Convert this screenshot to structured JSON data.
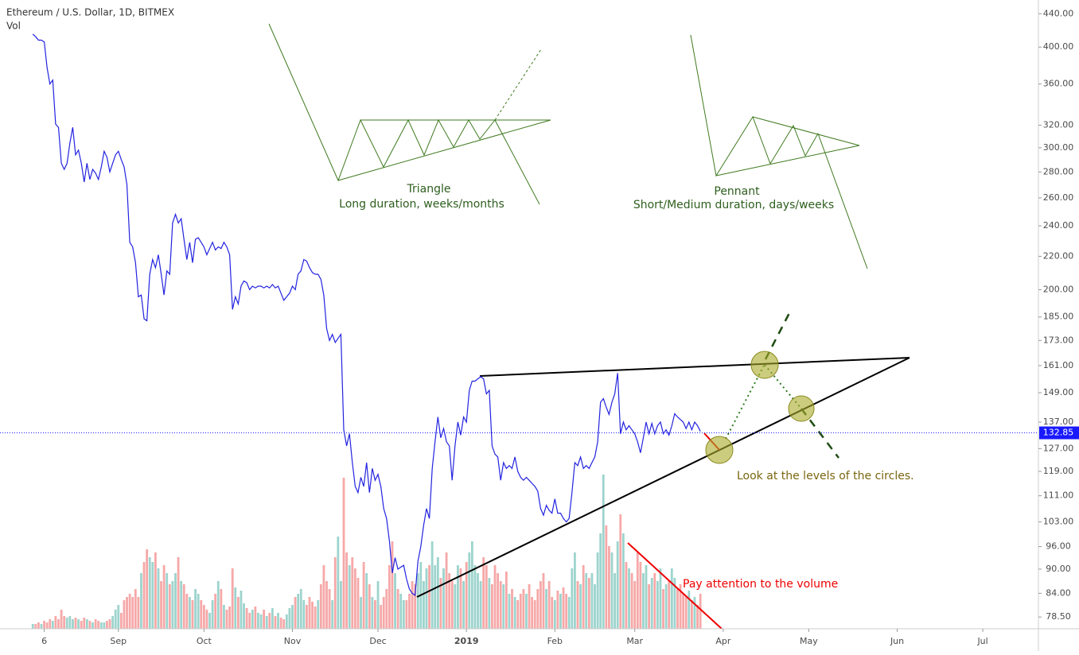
{
  "chart_data": {
    "type": "line",
    "title": "Ethereum / U.S. Dollar, 1D, BITMEX",
    "subtitle": "Vol",
    "log_scale": true,
    "grid": false,
    "color": "#2323e0",
    "x": [
      1,
      2,
      3,
      4,
      5,
      6,
      7,
      8,
      9,
      10,
      11,
      12,
      13,
      14,
      15,
      16,
      17,
      18,
      19,
      20,
      21,
      22,
      23,
      24,
      25,
      26,
      27,
      28,
      29,
      30,
      31,
      32,
      33,
      34,
      35,
      36,
      37,
      38,
      39,
      40,
      41,
      42,
      43,
      44,
      45,
      46,
      47,
      48,
      49,
      50,
      51,
      52,
      53,
      54,
      55,
      56,
      57,
      58,
      59,
      60,
      61,
      62,
      63,
      64,
      65,
      66,
      67,
      68,
      69,
      70,
      71,
      72,
      73,
      74,
      75,
      76,
      77,
      78,
      79,
      80,
      81,
      82,
      83,
      84,
      85,
      86,
      87,
      88,
      89,
      90,
      91,
      92,
      93,
      94,
      95,
      96,
      97,
      98,
      99,
      100,
      101,
      102,
      103,
      104,
      105,
      106,
      107,
      108,
      109,
      110,
      111,
      112,
      113,
      114,
      115,
      116,
      117,
      118,
      119,
      120,
      121,
      122,
      123,
      124,
      125,
      126,
      127,
      128,
      129,
      130,
      131,
      132,
      133,
      134,
      135,
      136,
      137,
      138,
      139,
      140,
      141,
      142,
      143,
      144,
      145,
      146,
      147,
      148,
      149,
      150,
      151,
      152,
      153,
      154,
      155,
      156,
      157,
      158,
      159,
      160,
      161,
      162,
      163,
      164,
      165,
      166,
      167,
      168,
      169,
      170,
      171,
      172,
      173,
      174,
      175,
      176,
      177,
      178,
      179,
      180,
      181,
      182,
      183,
      184,
      185,
      186,
      187,
      188,
      189,
      190,
      191,
      192,
      193,
      194,
      195,
      196,
      197,
      198,
      199,
      200,
      201,
      202,
      203,
      204,
      205,
      206,
      207,
      208,
      209,
      210,
      211,
      212,
      213,
      214,
      215,
      216,
      217,
      218,
      219,
      220,
      221,
      222,
      223,
      224,
      225,
      226,
      227,
      228,
      229,
      230,
      231,
      232,
      233,
      234,
      235
    ],
    "values": [
      415,
      412,
      408,
      408,
      406,
      377,
      360,
      364,
      321,
      318,
      287,
      282,
      287,
      304,
      318,
      294,
      298,
      287,
      272,
      287,
      274,
      282,
      279,
      274,
      284,
      297,
      292,
      280,
      287,
      294,
      297,
      290,
      284,
      270,
      229,
      226,
      216,
      196,
      197,
      184,
      183,
      209,
      218,
      213,
      221,
      209,
      197,
      211,
      209,
      242,
      248,
      242,
      245,
      231,
      218,
      229,
      216,
      231,
      232,
      229,
      226,
      221,
      225,
      229,
      224,
      226,
      225,
      229,
      226,
      221,
      189,
      196,
      192,
      202,
      205,
      204,
      200,
      202,
      201,
      202,
      202,
      201,
      202,
      201,
      203,
      201,
      202,
      198,
      194,
      196,
      198,
      202,
      200,
      209,
      211,
      218,
      217,
      213,
      210,
      209,
      209,
      206,
      197,
      179,
      173,
      176,
      172,
      174,
      176,
      134,
      128,
      132.5,
      122,
      114,
      112,
      117,
      114,
      122,
      112,
      120,
      116,
      118,
      114,
      107,
      104,
      97.5,
      89,
      93,
      90,
      90.5,
      91,
      87.5,
      85,
      84,
      83.5,
      92,
      96,
      102,
      107,
      104,
      120,
      129.5,
      139,
      131,
      134.5,
      129.5,
      128,
      116,
      128,
      137,
      132,
      139,
      137,
      150,
      154,
      154,
      155,
      156,
      155,
      148.5,
      150,
      128,
      125,
      124,
      116,
      122,
      120,
      121,
      120,
      124,
      119,
      117,
      116,
      117,
      116,
      115,
      114,
      112.5,
      107,
      105,
      108,
      106.5,
      105.6,
      110,
      105.6,
      105.6,
      104,
      103,
      104,
      112,
      122,
      121,
      124,
      120,
      121,
      120,
      122,
      124,
      129.5,
      145,
      146.5,
      143,
      140,
      145,
      148.5,
      157.6,
      132.5,
      137,
      134,
      135.6,
      134,
      132.5,
      129.5,
      125.5,
      131,
      137,
      132.5,
      136.5,
      132.5,
      135.6,
      137,
      132.5,
      134,
      132,
      135.6,
      140.3,
      139,
      138,
      137,
      134.5,
      137,
      134,
      137,
      135.6,
      133.4
    ],
    "volume": {
      "up_color": "#9dd4cd",
      "down_color": "#f6a8a8",
      "ylim": [
        0,
        100
      ],
      "values": [
        3,
        3,
        4,
        3,
        5,
        4,
        6,
        5,
        8,
        6,
        12,
        8,
        7,
        8,
        6,
        7,
        6,
        5,
        7,
        6,
        5,
        4,
        6,
        5,
        4,
        4,
        5,
        6,
        8,
        12,
        15,
        10,
        18,
        20,
        22,
        20,
        25,
        20,
        35,
        42,
        50,
        45,
        42,
        48,
        38,
        30,
        40,
        35,
        28,
        30,
        35,
        45,
        30,
        28,
        22,
        20,
        18,
        25,
        22,
        18,
        15,
        12,
        10,
        18,
        22,
        30,
        25,
        15,
        12,
        14,
        38,
        26,
        20,
        24,
        16,
        13,
        10,
        12,
        14,
        10,
        9,
        12,
        8,
        10,
        13,
        8,
        10,
        7,
        6,
        9,
        13,
        15,
        20,
        22,
        25,
        18,
        15,
        20,
        17,
        14,
        18,
        28,
        40,
        30,
        25,
        18,
        45,
        58,
        30,
        95,
        48,
        40,
        45,
        38,
        32,
        20,
        42,
        35,
        28,
        20,
        18,
        30,
        15,
        20,
        25,
        40,
        55,
        35,
        25,
        22,
        18,
        18,
        22,
        30,
        28,
        35,
        42,
        30,
        38,
        40,
        55,
        40,
        45,
        32,
        38,
        48,
        35,
        30,
        28,
        40,
        38,
        30,
        42,
        48,
        55,
        40,
        35,
        30,
        45,
        40,
        32,
        28,
        40,
        35,
        30,
        28,
        36,
        22,
        25,
        20,
        18,
        22,
        25,
        22,
        28,
        20,
        18,
        25,
        30,
        35,
        25,
        30,
        20,
        18,
        24,
        22,
        26,
        22,
        20,
        38,
        48,
        30,
        28,
        40,
        35,
        32,
        35,
        28,
        48,
        60,
        97,
        65,
        52,
        48,
        35,
        55,
        72,
        60,
        42,
        38,
        35,
        30,
        48,
        42,
        35,
        40,
        28,
        32,
        35,
        30,
        38,
        25,
        28,
        30,
        38,
        32,
        25,
        28,
        22,
        20,
        24,
        18,
        20,
        15,
        22
      ]
    },
    "last_price": 132.85,
    "last_price_color": "#1a1aff",
    "xlim": [
      -10.5,
      353.5
    ],
    "xticks": [
      {
        "value": 5,
        "label": "6"
      },
      {
        "value": 31,
        "label": "Sep"
      },
      {
        "value": 61,
        "label": "Oct"
      },
      {
        "value": 92,
        "label": "Nov"
      },
      {
        "value": 122,
        "label": "Dec"
      },
      {
        "value": 153,
        "label": "2019"
      },
      {
        "value": 184,
        "label": "Feb"
      },
      {
        "value": 212,
        "label": "Mar"
      },
      {
        "value": 243,
        "label": "Apr"
      },
      {
        "value": 273,
        "label": "May"
      },
      {
        "value": 304,
        "label": "Jun"
      },
      {
        "value": 334,
        "label": "Jul"
      }
    ],
    "ylim": [
      75.9,
      457.6
    ],
    "yticks": [
      {
        "value": 78.5,
        "label": "78.50"
      },
      {
        "value": 84,
        "label": "84.00"
      },
      {
        "value": 90,
        "label": "90.00"
      },
      {
        "value": 96,
        "label": "96.00"
      },
      {
        "value": 103,
        "label": "103.00"
      },
      {
        "value": 111,
        "label": "111.00"
      },
      {
        "value": 119,
        "label": "119.00"
      },
      {
        "value": 127,
        "label": "127.00"
      },
      {
        "value": 137,
        "label": "137.00"
      },
      {
        "value": 149,
        "label": "149.00"
      },
      {
        "value": 161,
        "label": "161.00"
      },
      {
        "value": 173,
        "label": "173.00"
      },
      {
        "value": 185,
        "label": "185.00"
      },
      {
        "value": 200,
        "label": "200.00"
      },
      {
        "value": 220,
        "label": "220.00"
      },
      {
        "value": 240,
        "label": "240.00"
      },
      {
        "value": 260,
        "label": "260.00"
      },
      {
        "value": 280,
        "label": "280.00"
      },
      {
        "value": 300,
        "label": "300.00"
      },
      {
        "value": 320,
        "label": "320.00"
      },
      {
        "value": 360,
        "label": "360.00"
      },
      {
        "value": 400,
        "label": "400.00"
      },
      {
        "value": 440,
        "label": "440.00"
      }
    ],
    "annotations": [
      "Triangle",
      "Long duration, weeks/months",
      "Pennant",
      "Short/Medium duration, days/weeks",
      "Look at the levels of the circles.",
      "Pay attention to the volume"
    ]
  }
}
